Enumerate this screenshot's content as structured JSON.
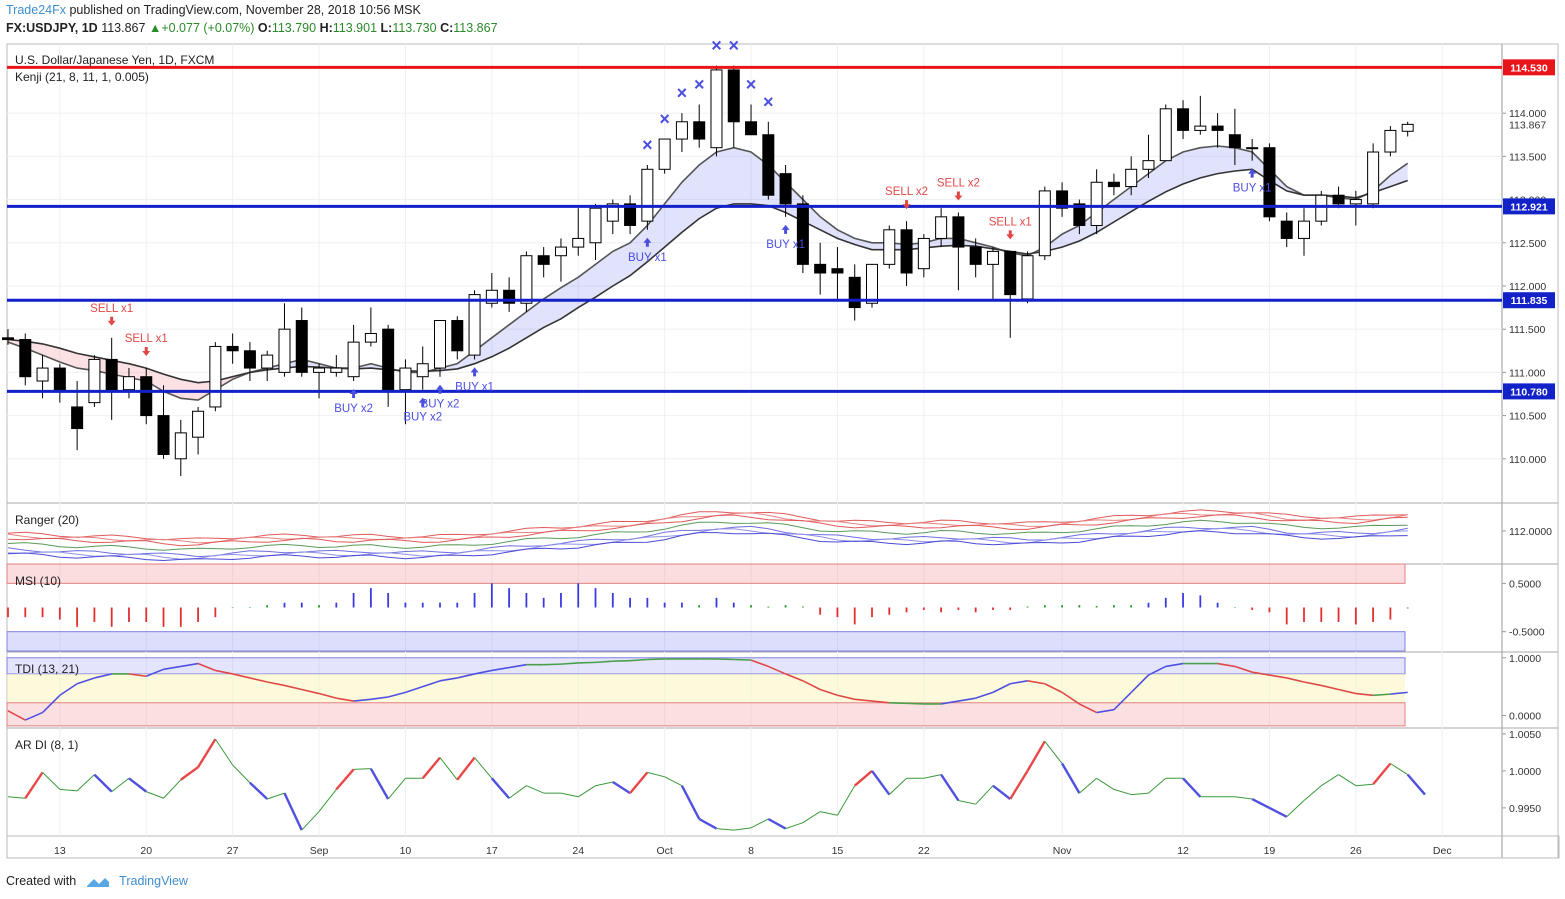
{
  "header": {
    "publisher": "Trade24Fx",
    "published_text": "published on TradingView.com, November 28, 2018 10:56 MSK",
    "symbol": "FX:USDJPY, 1D",
    "last": "113.867",
    "change": "+0.077 (+0.07%)",
    "o_label": "O:",
    "o": "113.790",
    "h_label": "H:",
    "h": "113.901",
    "l_label": "L:",
    "l": "113.730",
    "c_label": "C:",
    "c": "113.867"
  },
  "footer": {
    "created_with": "Created with",
    "brand": "TradingView"
  },
  "colors": {
    "up_candle": "#ffffff",
    "down_candle": "#000000",
    "resistance": "#e8161b",
    "support": "#1321c9",
    "buy": "#4b4fe0",
    "sell": "#e04848"
  },
  "chart_data": [
    {
      "type": "candlestick",
      "title": "U.S. Dollar/Japanese Yen, 1D, FXCM",
      "indicator": "Kenji (21, 8, 11, 1, 0.005)",
      "y_ticks": [
        "110.000",
        "110.500",
        "111.000",
        "111.500",
        "112.000",
        "112.500",
        "113.000",
        "113.500",
        "114.000"
      ],
      "ylim": [
        109.5,
        114.8
      ],
      "x_ticks": [
        {
          "i": 3,
          "label": "13"
        },
        {
          "i": 8,
          "label": "20"
        },
        {
          "i": 13,
          "label": "27"
        },
        {
          "i": 18,
          "label": "Sep"
        },
        {
          "i": 23,
          "label": "10"
        },
        {
          "i": 28,
          "label": "17"
        },
        {
          "i": 33,
          "label": "24"
        },
        {
          "i": 38,
          "label": "Oct"
        },
        {
          "i": 43,
          "label": "8"
        },
        {
          "i": 48,
          "label": "15"
        },
        {
          "i": 53,
          "label": "22"
        },
        {
          "i": 61,
          "label": "Nov"
        },
        {
          "i": 68,
          "label": "12"
        },
        {
          "i": 73,
          "label": "19"
        },
        {
          "i": 78,
          "label": "26"
        },
        {
          "i": 83,
          "label": "Dec"
        }
      ],
      "horizontal_levels": [
        {
          "value": 114.53,
          "label": "114.530",
          "color": "#e8161b"
        },
        {
          "value": 112.921,
          "label": "112.921",
          "color": "#1321c9"
        },
        {
          "value": 111.835,
          "label": "111.835",
          "color": "#1321c9"
        },
        {
          "value": 110.78,
          "label": "110.780",
          "color": "#1321c9"
        }
      ],
      "last_price_label": "113.867",
      "candles": [
        [
          111.4,
          111.5,
          111.32,
          111.38
        ],
        [
          111.38,
          111.45,
          110.85,
          110.95
        ],
        [
          110.9,
          111.2,
          110.7,
          111.05
        ],
        [
          111.05,
          111.1,
          110.65,
          110.8
        ],
        [
          110.6,
          110.9,
          110.1,
          110.35
        ],
        [
          110.65,
          111.2,
          110.6,
          111.15
        ],
        [
          111.15,
          111.4,
          110.45,
          110.8
        ],
        [
          110.8,
          111.05,
          110.7,
          110.95
        ],
        [
          110.95,
          111.05,
          110.4,
          110.5
        ],
        [
          110.5,
          110.85,
          110.0,
          110.05
        ],
        [
          110.0,
          110.45,
          109.8,
          110.3
        ],
        [
          110.25,
          110.6,
          110.05,
          110.55
        ],
        [
          110.6,
          111.35,
          110.55,
          111.3
        ],
        [
          111.3,
          111.45,
          111.1,
          111.25
        ],
        [
          111.25,
          111.35,
          110.9,
          111.05
        ],
        [
          111.05,
          111.25,
          110.9,
          111.2
        ],
        [
          111.0,
          111.8,
          110.95,
          111.5
        ],
        [
          111.6,
          111.75,
          110.95,
          111.0
        ],
        [
          111.0,
          111.1,
          110.7,
          111.05
        ],
        [
          111.0,
          111.2,
          110.95,
          111.05
        ],
        [
          110.95,
          111.55,
          110.9,
          111.35
        ],
        [
          111.35,
          111.75,
          111.3,
          111.45
        ],
        [
          111.5,
          111.55,
          110.6,
          110.8
        ],
        [
          110.8,
          111.15,
          110.4,
          111.05
        ],
        [
          110.95,
          111.3,
          110.8,
          111.1
        ],
        [
          111.05,
          111.6,
          110.95,
          111.6
        ],
        [
          111.6,
          111.65,
          111.15,
          111.25
        ],
        [
          111.2,
          111.95,
          111.15,
          111.9
        ],
        [
          111.8,
          112.15,
          111.75,
          111.95
        ],
        [
          111.95,
          112.1,
          111.7,
          111.8
        ],
        [
          111.8,
          112.4,
          111.7,
          112.35
        ],
        [
          112.35,
          112.45,
          112.1,
          112.25
        ],
        [
          112.35,
          112.55,
          112.05,
          112.45
        ],
        [
          112.45,
          112.9,
          112.35,
          112.55
        ],
        [
          112.5,
          112.95,
          112.3,
          112.9
        ],
        [
          112.75,
          113.0,
          112.6,
          112.95
        ],
        [
          112.95,
          113.05,
          112.6,
          112.7
        ],
        [
          112.75,
          113.4,
          112.65,
          113.35
        ],
        [
          113.35,
          113.7,
          113.3,
          113.7
        ],
        [
          113.7,
          114.0,
          113.55,
          113.9
        ],
        [
          113.9,
          114.1,
          113.6,
          113.7
        ],
        [
          113.6,
          114.55,
          113.5,
          114.5
        ],
        [
          114.5,
          114.55,
          113.6,
          113.9
        ],
        [
          113.9,
          114.1,
          113.75,
          113.75
        ],
        [
          113.75,
          113.9,
          113.0,
          113.05
        ],
        [
          113.3,
          113.4,
          112.8,
          112.95
        ],
        [
          112.95,
          113.05,
          112.15,
          112.25
        ],
        [
          112.25,
          112.5,
          111.9,
          112.15
        ],
        [
          112.2,
          112.45,
          111.85,
          112.15
        ],
        [
          112.1,
          112.25,
          111.6,
          111.75
        ],
        [
          111.8,
          112.25,
          111.75,
          112.25
        ],
        [
          112.25,
          112.7,
          112.2,
          112.65
        ],
        [
          112.65,
          112.75,
          112.0,
          112.15
        ],
        [
          112.2,
          112.6,
          112.1,
          112.55
        ],
        [
          112.55,
          112.9,
          112.45,
          112.8
        ],
        [
          112.8,
          112.85,
          111.95,
          112.45
        ],
        [
          112.45,
          112.55,
          112.1,
          112.25
        ],
        [
          112.25,
          112.45,
          111.85,
          112.4
        ],
        [
          112.4,
          112.4,
          111.4,
          111.9
        ],
        [
          111.85,
          112.4,
          111.8,
          112.35
        ],
        [
          112.35,
          113.15,
          112.3,
          113.1
        ],
        [
          113.1,
          113.2,
          112.8,
          112.9
        ],
        [
          112.95,
          113.0,
          112.6,
          112.7
        ],
        [
          112.7,
          113.35,
          112.6,
          113.2
        ],
        [
          113.2,
          113.3,
          113.05,
          113.15
        ],
        [
          113.15,
          113.5,
          113.05,
          113.35
        ],
        [
          113.35,
          113.75,
          113.25,
          113.45
        ],
        [
          113.45,
          114.1,
          113.45,
          114.05
        ],
        [
          114.05,
          114.15,
          113.7,
          113.8
        ],
        [
          113.8,
          114.2,
          113.75,
          113.85
        ],
        [
          113.85,
          114.0,
          113.6,
          113.8
        ],
        [
          113.75,
          114.05,
          113.4,
          113.6
        ],
        [
          113.6,
          113.7,
          113.45,
          113.6
        ],
        [
          113.6,
          113.65,
          112.75,
          112.8
        ],
        [
          112.75,
          112.85,
          112.45,
          112.55
        ],
        [
          112.55,
          112.9,
          112.35,
          112.75
        ],
        [
          112.75,
          113.1,
          112.7,
          113.05
        ],
        [
          113.05,
          113.15,
          112.9,
          112.95
        ],
        [
          112.95,
          113.1,
          112.7,
          113.0
        ],
        [
          112.95,
          113.65,
          112.9,
          113.55
        ],
        [
          113.55,
          113.85,
          113.5,
          113.8
        ],
        [
          113.79,
          113.9,
          113.73,
          113.87
        ]
      ],
      "cloud_fast": [
        111.35,
        111.28,
        111.2,
        111.12,
        111.05,
        111.02,
        110.98,
        110.94,
        110.9,
        110.78,
        110.7,
        110.68,
        110.8,
        110.92,
        111.0,
        111.05,
        111.1,
        111.15,
        111.1,
        111.05,
        111.05,
        111.1,
        111.05,
        111.0,
        111.0,
        111.05,
        111.1,
        111.25,
        111.4,
        111.55,
        111.7,
        111.85,
        111.98,
        112.1,
        112.25,
        112.4,
        112.5,
        112.7,
        112.95,
        113.2,
        113.4,
        113.55,
        113.6,
        113.55,
        113.4,
        113.2,
        113.0,
        112.8,
        112.65,
        112.55,
        112.5,
        112.5,
        112.48,
        112.5,
        112.55,
        112.55,
        112.5,
        112.45,
        112.38,
        112.35,
        112.45,
        112.6,
        112.7,
        112.85,
        113.0,
        113.15,
        113.3,
        113.45,
        113.55,
        113.6,
        113.62,
        113.6,
        113.55,
        113.35,
        113.15,
        113.05,
        113.05,
        113.02,
        113.0,
        113.1,
        113.28,
        113.42
      ],
      "cloud_slow": [
        111.38,
        111.36,
        111.33,
        111.28,
        111.22,
        111.18,
        111.14,
        111.1,
        111.05,
        110.98,
        110.92,
        110.88,
        110.9,
        110.95,
        111.0,
        111.03,
        111.05,
        111.07,
        111.06,
        111.05,
        111.04,
        111.05,
        111.03,
        111.02,
        111.01,
        111.02,
        111.04,
        111.1,
        111.18,
        111.28,
        111.4,
        111.52,
        111.62,
        111.75,
        111.87,
        112.0,
        112.12,
        112.28,
        112.45,
        112.62,
        112.78,
        112.9,
        112.95,
        112.95,
        112.93,
        112.85,
        112.75,
        112.65,
        112.55,
        112.48,
        112.42,
        112.42,
        112.42,
        112.44,
        112.46,
        112.47,
        112.46,
        112.43,
        112.4,
        112.37,
        112.4,
        112.45,
        112.52,
        112.62,
        112.74,
        112.86,
        112.98,
        113.09,
        113.18,
        113.25,
        113.3,
        113.33,
        113.35,
        113.22,
        113.1,
        113.05,
        113.05,
        113.04,
        113.02,
        113.08,
        113.15,
        113.22
      ],
      "signals": [
        {
          "i": 6,
          "text": "SELL x1",
          "dir": "sell"
        },
        {
          "i": 8,
          "text": "SELL x1",
          "dir": "sell"
        },
        {
          "i": 20,
          "text": "BUY x2",
          "dir": "buy"
        },
        {
          "i": 24,
          "text": "BUY x2",
          "dir": "buy"
        },
        {
          "i": 25,
          "text": "BUY x2",
          "dir": "buy"
        },
        {
          "i": 27,
          "text": "BUY x1",
          "dir": "buy"
        },
        {
          "i": 37,
          "text": "BUY x1",
          "dir": "buy"
        },
        {
          "i": 45,
          "text": "BUY x1",
          "dir": "buy"
        },
        {
          "i": 52,
          "text": "SELL x2",
          "dir": "sell"
        },
        {
          "i": 55,
          "text": "SELL x2",
          "dir": "sell"
        },
        {
          "i": 58,
          "text": "SELL x1",
          "dir": "sell"
        },
        {
          "i": 72,
          "text": "BUY x1",
          "dir": "buy"
        }
      ],
      "crosses": [
        37,
        38,
        39,
        40,
        41,
        42,
        43,
        44
      ]
    },
    {
      "type": "line",
      "title": "Ranger (20)",
      "y_ticks": [
        "112.0000"
      ]
    },
    {
      "type": "bar",
      "title": "MSI (10)",
      "y_ticks": [
        "0.5000",
        "-0.5000"
      ],
      "values": [
        -0.2,
        -0.2,
        -0.2,
        -0.25,
        -0.4,
        -0.3,
        -0.4,
        -0.3,
        -0.3,
        -0.4,
        -0.4,
        -0.3,
        -0.2,
        0,
        0,
        0.05,
        0.1,
        0.1,
        0.05,
        0.1,
        0.3,
        0.4,
        0.3,
        0.1,
        0.1,
        0.1,
        0.1,
        0.3,
        0.5,
        0.4,
        0.3,
        0.2,
        0.3,
        0.5,
        0.4,
        0.3,
        0.2,
        0.2,
        0.1,
        0.1,
        0.05,
        0.2,
        0.1,
        0.05,
        0.02,
        0.05,
        0.02,
        -0.15,
        -0.2,
        -0.35,
        -0.2,
        -0.15,
        -0.1,
        -0.05,
        -0.1,
        -0.05,
        -0.1,
        -0.05,
        -0.05,
        0.02,
        0.05,
        0.05,
        0.05,
        0.03,
        0.05,
        0.05,
        0.1,
        0.2,
        0.3,
        0.25,
        0.1,
        0,
        -0.05,
        -0.1,
        -0.35,
        -0.3,
        -0.3,
        -0.3,
        -0.35,
        -0.3,
        -0.25,
        -0.02
      ],
      "ylim": [
        -0.9,
        0.9
      ]
    },
    {
      "type": "line",
      "title": "TDI (13, 21)",
      "y_ticks": [
        "1.0000",
        "0.0000"
      ],
      "ylim": [
        -0.2,
        1.1
      ],
      "values": [
        0.08,
        -0.08,
        0.05,
        0.35,
        0.55,
        0.65,
        0.72,
        0.72,
        0.68,
        0.8,
        0.85,
        0.9,
        0.78,
        0.72,
        0.65,
        0.58,
        0.52,
        0.45,
        0.38,
        0.3,
        0.25,
        0.28,
        0.32,
        0.4,
        0.5,
        0.6,
        0.65,
        0.72,
        0.78,
        0.83,
        0.88,
        0.88,
        0.89,
        0.91,
        0.92,
        0.94,
        0.95,
        0.97,
        0.98,
        0.98,
        0.98,
        0.98,
        0.97,
        0.96,
        0.85,
        0.72,
        0.6,
        0.45,
        0.35,
        0.28,
        0.25,
        0.22,
        0.21,
        0.2,
        0.2,
        0.25,
        0.3,
        0.4,
        0.55,
        0.6,
        0.55,
        0.4,
        0.2,
        0.05,
        0.1,
        0.4,
        0.7,
        0.85,
        0.9,
        0.9,
        0.9,
        0.85,
        0.75,
        0.7,
        0.65,
        0.58,
        0.52,
        0.45,
        0.38,
        0.35,
        0.37,
        0.4
      ]
    },
    {
      "type": "line",
      "title": "AR DI (8, 1)",
      "y_ticks": [
        "1.0050",
        "1.0000",
        "0.9950"
      ],
      "ylim": [
        0.9912,
        1.0058
      ],
      "values": [
        0.9965,
        0.9963,
        0.9998,
        0.9975,
        0.9973,
        0.9995,
        0.9972,
        0.999,
        0.9972,
        0.9963,
        0.9988,
        1.0005,
        1.0043,
        1.0008,
        0.9984,
        0.9962,
        0.997,
        0.992,
        0.9945,
        0.9975,
        1.0002,
        1.0003,
        0.9962,
        0.999,
        0.999,
        1.0018,
        0.9988,
        1.0018,
        0.999,
        0.9963,
        0.998,
        0.997,
        0.997,
        0.9965,
        0.998,
        0.9985,
        0.997,
        0.9998,
        0.9992,
        0.998,
        0.9935,
        0.9922,
        0.992,
        0.9923,
        0.9935,
        0.9922,
        0.993,
        0.9945,
        0.994,
        0.998,
        1.0,
        0.9968,
        0.999,
        0.999,
        0.9995,
        0.996,
        0.9955,
        0.998,
        0.9962,
        1.0,
        1.004,
        1.001,
        0.997,
        0.999,
        0.9975,
        0.9968,
        0.997,
        0.999,
        0.999,
        0.9965,
        0.9965,
        0.9965,
        0.9962,
        0.995,
        0.9938,
        0.996,
        0.998,
        0.9995,
        0.998,
        0.9982,
        1.001,
        0.9995,
        0.9968
      ]
    }
  ]
}
